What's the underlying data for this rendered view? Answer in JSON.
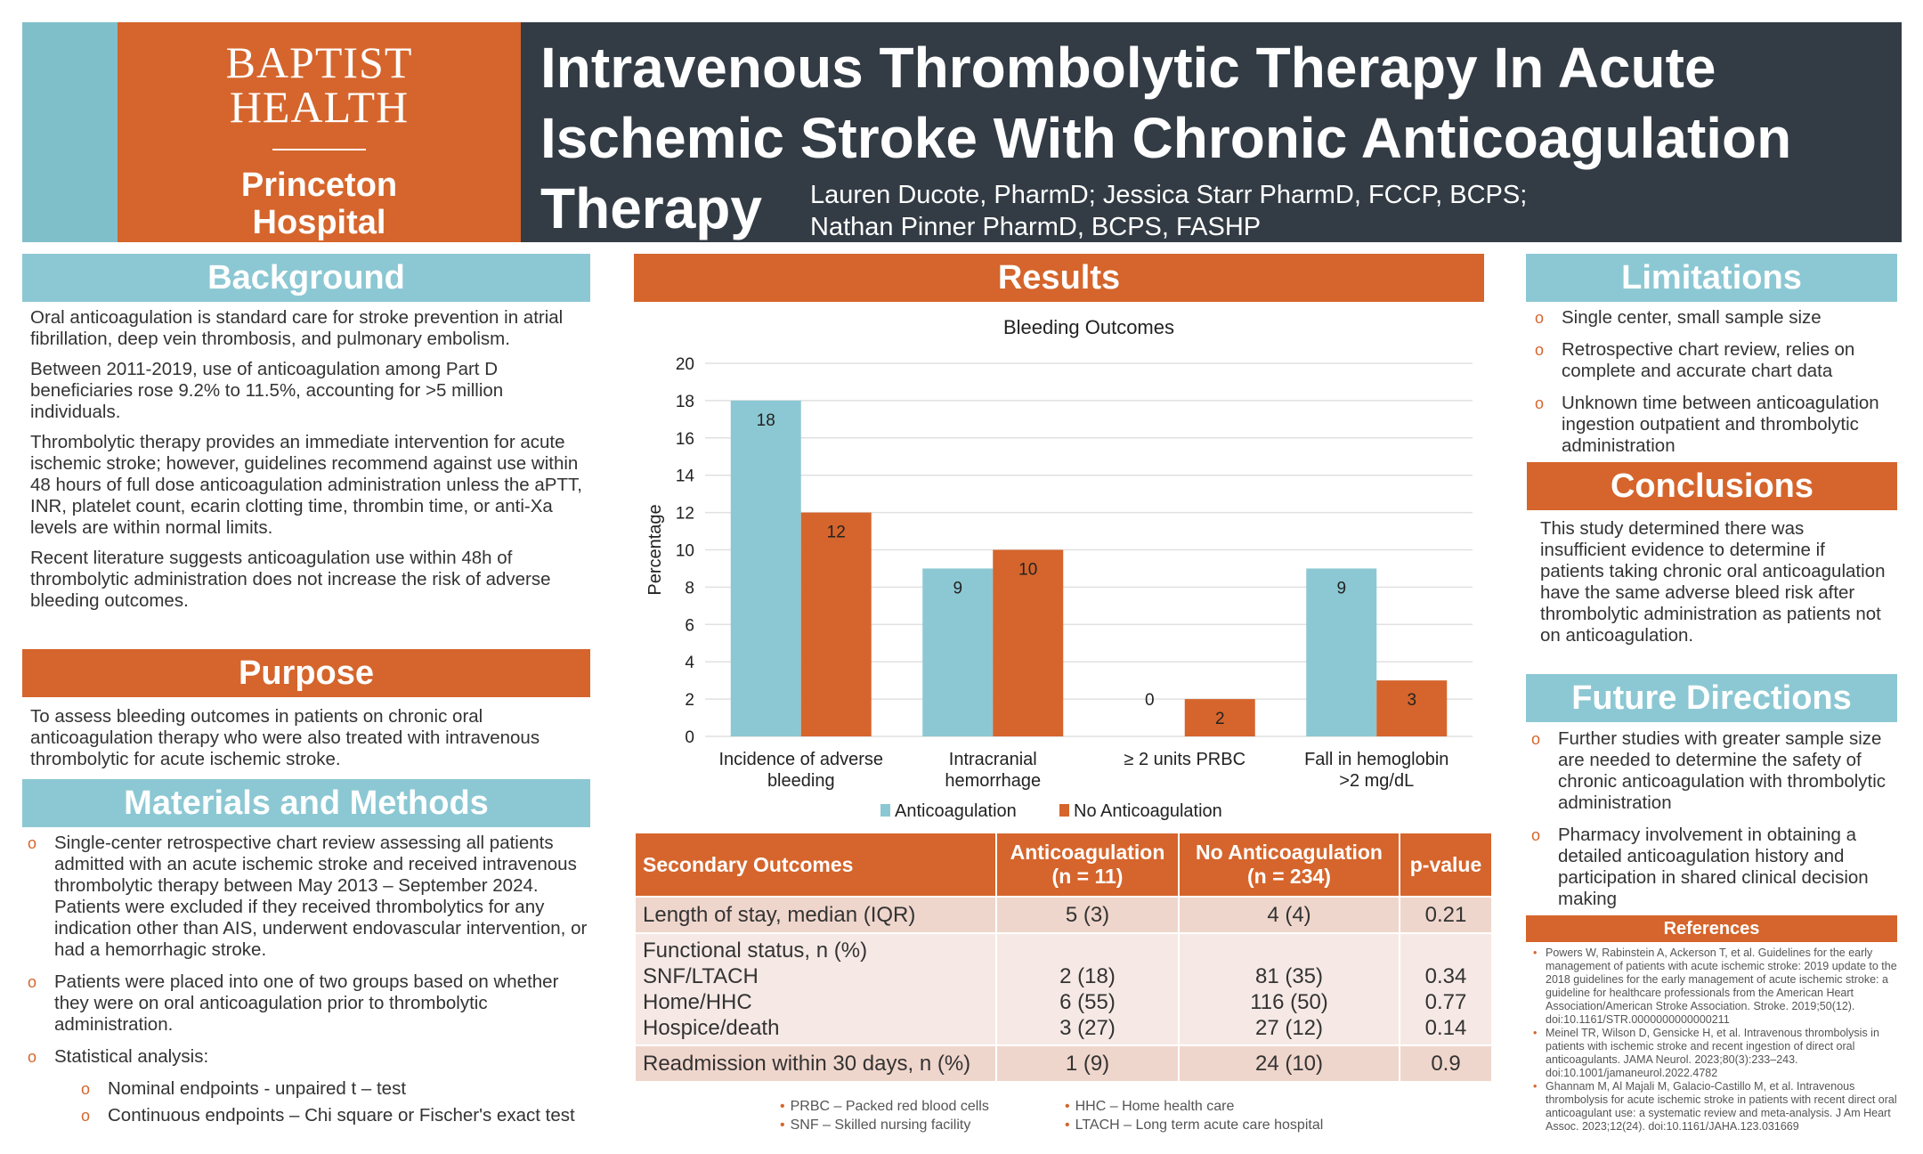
{
  "header": {
    "logo_line1": "BAPTIST",
    "logo_line2": "HEALTH",
    "logo_line3": "Princeton",
    "logo_line4": "Hospital",
    "title": "Intravenous Thrombolytic Therapy In Acute Ischemic Stroke With Chronic Anticoagulation Therapy",
    "authors_line1": "Lauren Ducote, PharmD; Jessica Starr PharmD, FCCP, BCPS;",
    "authors_line2": "Nathan Pinner PharmD, BCPS, FASHP"
  },
  "background": {
    "heading": "Background",
    "paragraphs": [
      "Oral anticoagulation is standard care for stroke prevention in atrial fibrillation, deep vein thrombosis, and pulmonary embolism.",
      "Between 2011-2019, use of anticoagulation among Part D beneficiaries rose 9.2% to 11.5%, accounting for >5 million individuals.",
      "Thrombolytic therapy provides an immediate intervention for acute ischemic stroke; however, guidelines recommend against use within 48 hours of full dose anticoagulation administration unless the aPTT, INR, platelet count, ecarin clotting time, thrombin time, or anti-Xa levels are within normal limits.",
      "Recent literature suggests anticoagulation use within 48h of thrombolytic administration does not increase the risk of adverse bleeding outcomes."
    ]
  },
  "purpose": {
    "heading": "Purpose",
    "text": "To assess bleeding outcomes in patients on chronic oral anticoagulation therapy who were also treated with intravenous thrombolytic for acute ischemic stroke."
  },
  "methods": {
    "heading": "Materials and Methods",
    "items": [
      "Single-center retrospective chart review assessing all patients admitted with an acute ischemic stroke and received intravenous thrombolytic therapy between May 2013 – September 2024. Patients were excluded if they received thrombolytics for any indication other than AIS, underwent endovascular intervention, or had a hemorrhagic stroke.",
      "Patients were placed into one of two groups based on whether they were on oral anticoagulation prior to thrombolytic administration.",
      "Statistical analysis:"
    ],
    "subitems": [
      "Nominal endpoints  - unpaired t – test",
      "Continuous endpoints – Chi square or Fischer's exact test"
    ]
  },
  "results": {
    "heading": "Results"
  },
  "chart_data": {
    "type": "bar",
    "title": "Bleeding Outcomes",
    "xlabel": "",
    "ylabel": "Percentage",
    "ylim": [
      0,
      20
    ],
    "yticks": [
      0,
      2,
      4,
      6,
      8,
      10,
      12,
      14,
      16,
      18,
      20
    ],
    "grid": true,
    "legend": "bottom",
    "categories": [
      "Incidence of adverse bleeding",
      "Intracranial hemorrhage",
      "≥ 2 units PRBC",
      "Fall in hemoglobin >2 mg/dL"
    ],
    "series": [
      {
        "name": "Anticoagulation",
        "values": [
          18,
          9,
          0,
          9
        ],
        "color": "#8cc8d3"
      },
      {
        "name": "No Anticoagulation",
        "values": [
          12,
          10,
          2,
          3
        ],
        "color": "#d5652c"
      }
    ]
  },
  "table": {
    "headers": [
      "Secondary Outcomes",
      "Anticoagulation (n = 11)",
      "No Anticoagulation (n = 234)",
      "p-value"
    ],
    "row1": [
      "Length of stay, median (IQR)",
      "5 (3)",
      "4 (4)",
      "0.21"
    ],
    "functional_label": "Functional status, n (%)",
    "functional": [
      [
        "SNF/LTACH",
        "2 (18)",
        "81 (35)",
        "0.34"
      ],
      [
        "Home/HHC",
        "6 (55)",
        "116 (50)",
        "0.77"
      ],
      [
        "Hospice/death",
        "3 (27)",
        "27 (12)",
        "0.14"
      ]
    ],
    "row3": [
      "Readmission within 30 days, n (%)",
      "1 (9)",
      "24 (10)",
      "0.9"
    ]
  },
  "footnotes": [
    "PRBC – Packed red blood cells",
    "SNF – Skilled nursing facility",
    "HHC – Home health care",
    "LTACH – Long term acute care hospital"
  ],
  "limitations": {
    "heading": "Limitations",
    "items": [
      "Single center, small sample size",
      "Retrospective chart review, relies on complete and accurate chart data",
      "Unknown time between anticoagulation ingestion outpatient and thrombolytic administration"
    ]
  },
  "conclusions": {
    "heading": "Conclusions",
    "text": "This study determined there was insufficient evidence to determine if patients taking chronic oral anticoagulation have the same adverse bleed risk after thrombolytic administration as patients not on anticoagulation."
  },
  "future": {
    "heading": "Future Directions",
    "items": [
      "Further studies with greater sample size are needed to determine the safety of chronic anticoagulation with thrombolytic administration",
      "Pharmacy involvement in obtaining a detailed anticoagulation history and participation in shared clinical decision making"
    ]
  },
  "references": {
    "heading": "References",
    "items": [
      "Powers W, Rabinstein A, Ackerson T, et al. Guidelines for the early management of patients with acute ischemic stroke: 2019 update to the 2018 guidelines for the early management of acute ischemic stroke: a guideline for healthcare professionals from the American Heart Association/American Stroke Association. Stroke. 2019;50(12). doi:10.1161/STR.0000000000000211",
      "Meinel TR, Wilson D, Gensicke H, et al. Intravenous thrombolysis in patients with ischemic stroke and recent ingestion of direct oral anticoagulants. JAMA Neurol. 2023;80(3):233–243. doi:10.1001/jamaneurol.2022.4782",
      "Ghannam M, Al Majali M, Galacio-Castillo M, et al. Intravenous thrombolysis for acute ischemic stroke in patients with recent direct oral anticoagulant use: a systematic review and meta-analysis. J Am Heart Assoc. 2023;12(24). doi:10.1161/JAHA.123.031669"
    ]
  }
}
